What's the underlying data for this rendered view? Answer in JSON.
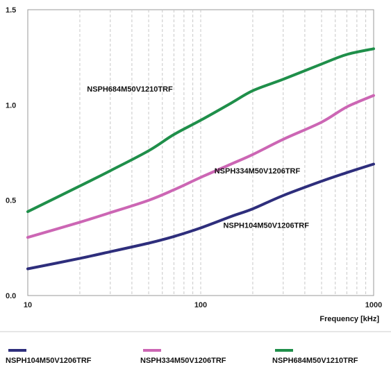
{
  "chart_data": {
    "type": "line",
    "title": "",
    "xlabel": "Frequency [kHz]",
    "ylabel": "",
    "x_scale": "log",
    "xlim": [
      10,
      1000
    ],
    "ylim": [
      0.0,
      1.5
    ],
    "x_ticks": [
      "10",
      "100",
      "1000"
    ],
    "y_ticks": [
      "0.0",
      "0.5",
      "1.0",
      "1.5"
    ],
    "grid": "vertical dashed minor lines",
    "legend_position": "bottom",
    "series": [
      {
        "name": "NSPH104M50V1206TRF",
        "color": "#2e2e7c",
        "x": [
          10,
          20,
          30,
          50,
          70,
          100,
          150,
          200,
          300,
          500,
          700,
          1000
        ],
        "y": [
          0.14,
          0.195,
          0.23,
          0.275,
          0.31,
          0.355,
          0.415,
          0.455,
          0.525,
          0.6,
          0.645,
          0.69
        ]
      },
      {
        "name": "NSPH334M50V1206TRF",
        "color": "#cc66b4",
        "x": [
          10,
          20,
          30,
          50,
          70,
          100,
          150,
          200,
          300,
          500,
          700,
          1000
        ],
        "y": [
          0.305,
          0.385,
          0.435,
          0.5,
          0.555,
          0.62,
          0.69,
          0.74,
          0.82,
          0.91,
          0.99,
          1.05
        ]
      },
      {
        "name": "NSPH684M50V1210TRF",
        "color": "#1f8f4a",
        "x": [
          10,
          20,
          30,
          50,
          70,
          100,
          150,
          200,
          300,
          500,
          700,
          1000
        ],
        "y": [
          0.44,
          0.575,
          0.655,
          0.76,
          0.845,
          0.92,
          1.01,
          1.075,
          1.135,
          1.215,
          1.265,
          1.295
        ]
      }
    ],
    "annotations": [
      {
        "text": "NSPH684M50V1210TRF",
        "x": 22,
        "y": 1.07
      },
      {
        "text": "NSPH334M50V1206TRF",
        "x": 120,
        "y": 0.64
      },
      {
        "text": "NSPH104M50V1206TRF",
        "x": 135,
        "y": 0.355
      }
    ]
  }
}
